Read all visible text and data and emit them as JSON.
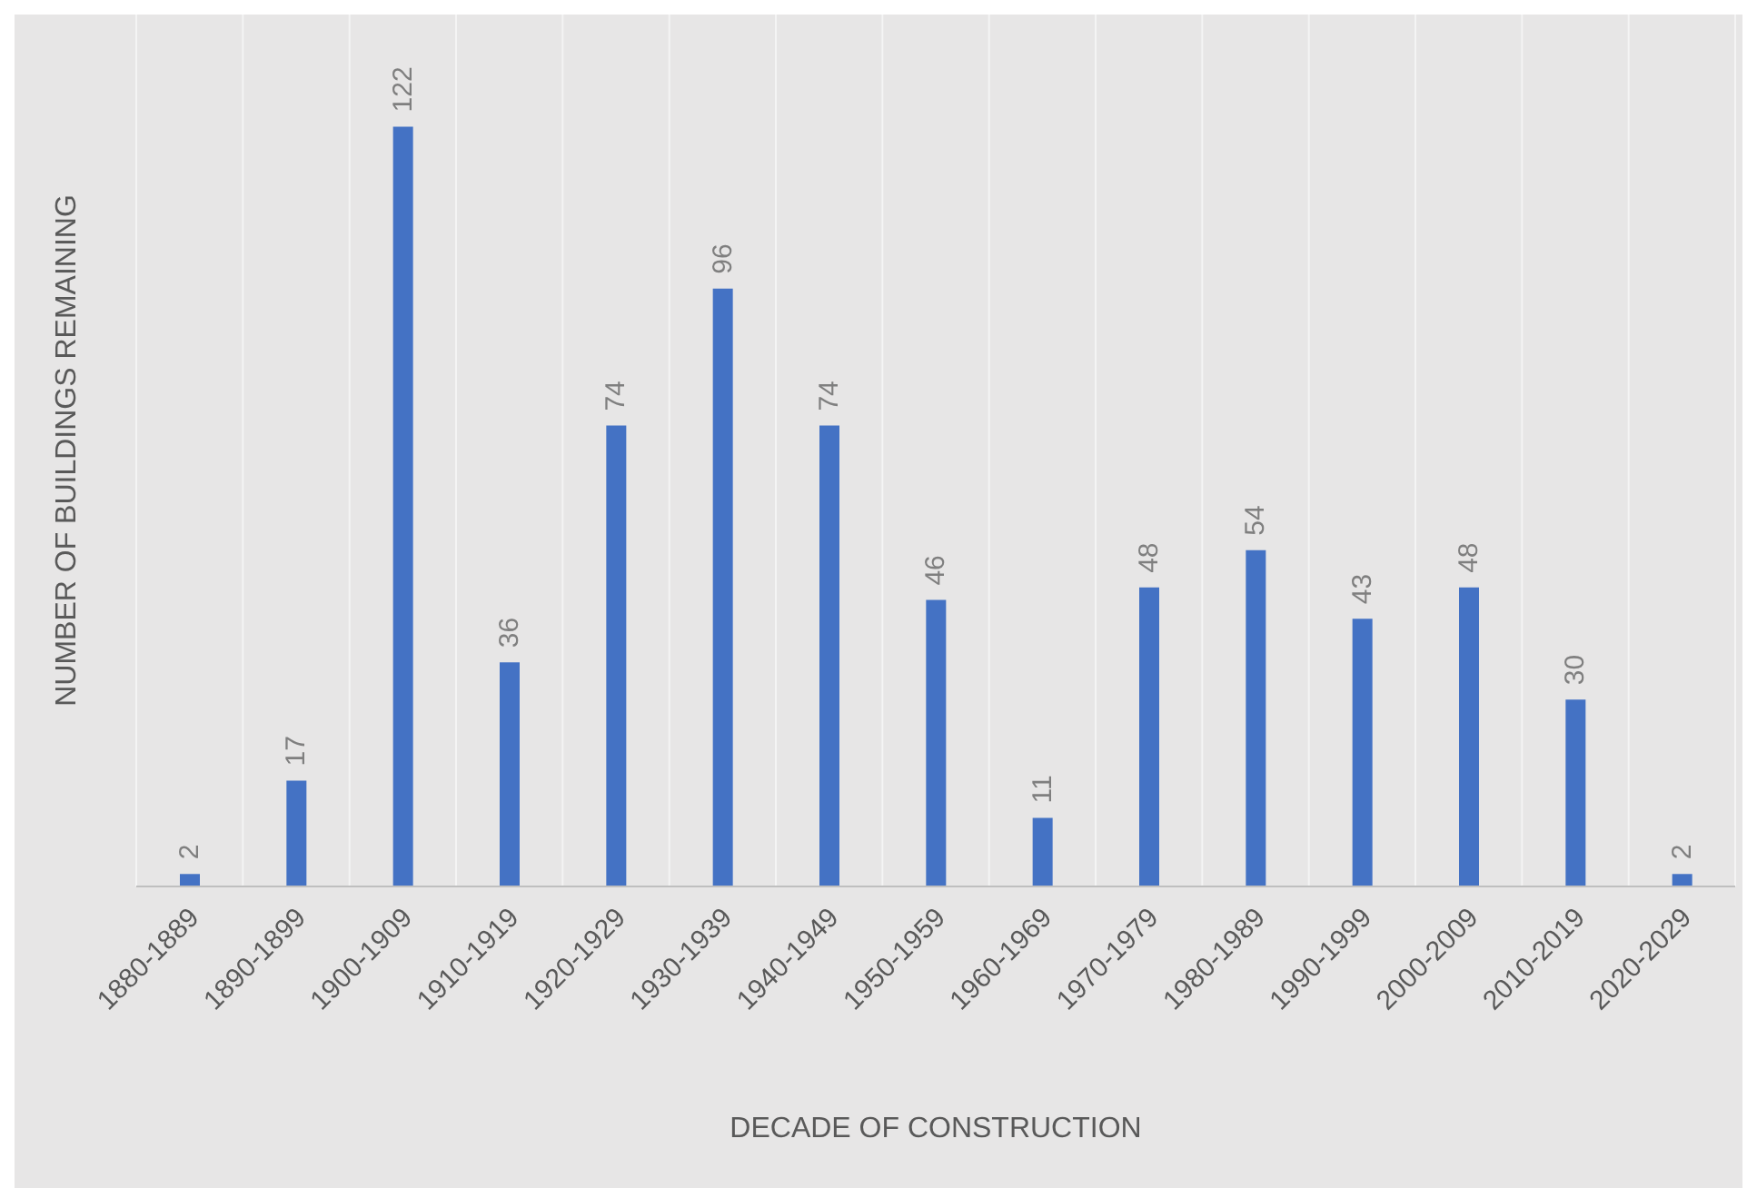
{
  "chart_data": {
    "type": "bar",
    "xlabel": "DECADE OF CONSTRUCTION",
    "ylabel": "NUMBER OF BUILDINGS REMAINING",
    "categories": [
      "1880-1889",
      "1890-1899",
      "1900-1909",
      "1910-1919",
      "1920-1929",
      "1930-1939",
      "1940-1949",
      "1950-1959",
      "1960-1969",
      "1970-1979",
      "1980-1989",
      "1990-1999",
      "2000-2009",
      "2010-2019",
      "2020-2029"
    ],
    "values": [
      2,
      17,
      122,
      36,
      74,
      96,
      74,
      46,
      11,
      48,
      54,
      43,
      48,
      30,
      2
    ],
    "color": "#4472c4",
    "data_labels": true,
    "tick_labels": "x",
    "grid": "x",
    "legend": false
  }
}
